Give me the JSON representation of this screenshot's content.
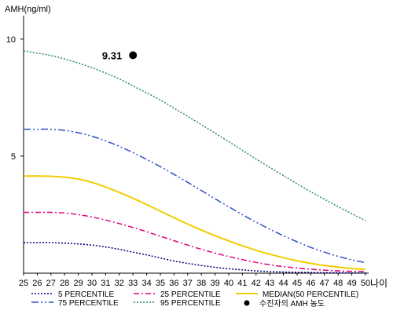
{
  "chart_data": {
    "type": "line",
    "ylabel": "AMH(ng/ml)",
    "xlabel": "나이",
    "xlim": [
      25,
      50
    ],
    "ylim": [
      0,
      11
    ],
    "x_ticks": [
      25,
      26,
      27,
      28,
      29,
      30,
      31,
      32,
      33,
      34,
      35,
      36,
      37,
      38,
      39,
      40,
      41,
      42,
      43,
      44,
      45,
      46,
      47,
      48,
      49,
      50
    ],
    "y_ticks": [
      5,
      10
    ],
    "x": [
      25,
      26,
      27,
      28,
      29,
      30,
      31,
      32,
      33,
      34,
      35,
      36,
      37,
      38,
      39,
      40,
      41,
      42,
      43,
      44,
      45,
      46,
      47,
      48,
      49,
      50
    ],
    "series": [
      {
        "name": "5 PERCENTILE",
        "color": "#000080",
        "dash": "2,2",
        "values": [
          1.3,
          1.3,
          1.3,
          1.28,
          1.25,
          1.2,
          1.12,
          1.02,
          0.9,
          0.78,
          0.65,
          0.52,
          0.42,
          0.33,
          0.25,
          0.19,
          0.14,
          0.1,
          0.07,
          0.05,
          0.04,
          0.03,
          0.02,
          0.02,
          0.01,
          0.01
        ]
      },
      {
        "name": "25 PERCENTILE",
        "color": "#e0007f",
        "dash": "7,3,2,3",
        "values": [
          2.6,
          2.6,
          2.6,
          2.57,
          2.5,
          2.4,
          2.27,
          2.12,
          1.95,
          1.77,
          1.58,
          1.39,
          1.2,
          1.02,
          0.86,
          0.71,
          0.58,
          0.46,
          0.36,
          0.28,
          0.22,
          0.17,
          0.13,
          0.1,
          0.08,
          0.07
        ]
      },
      {
        "name": "MEDIAN(50 PERCENTILE)",
        "color": "#f2cc00",
        "dash": "",
        "values": [
          4.15,
          4.15,
          4.14,
          4.1,
          4.02,
          3.88,
          3.68,
          3.45,
          3.2,
          2.93,
          2.65,
          2.37,
          2.1,
          1.84,
          1.6,
          1.38,
          1.17,
          0.98,
          0.81,
          0.66,
          0.53,
          0.42,
          0.33,
          0.26,
          0.2,
          0.16
        ]
      },
      {
        "name": "75 PERCENTILE",
        "color": "#2e4fc4",
        "dash": "9,3,2,3,2,3",
        "values": [
          6.15,
          6.15,
          6.15,
          6.1,
          6.0,
          5.85,
          5.65,
          5.42,
          5.15,
          4.86,
          4.55,
          4.22,
          3.88,
          3.53,
          3.18,
          2.84,
          2.5,
          2.18,
          1.88,
          1.6,
          1.34,
          1.1,
          0.9,
          0.72,
          0.57,
          0.45
        ]
      },
      {
        "name": "95 PERCENTILE",
        "color": "#2e8b57",
        "dash": "2,2",
        "values": [
          9.5,
          9.4,
          9.3,
          9.15,
          8.98,
          8.78,
          8.55,
          8.3,
          8.0,
          7.7,
          7.4,
          7.05,
          6.7,
          6.35,
          5.98,
          5.62,
          5.25,
          4.88,
          4.52,
          4.17,
          3.82,
          3.48,
          3.16,
          2.84,
          2.54,
          2.25
        ]
      }
    ],
    "annotation": {
      "label": "9.31",
      "x": 33,
      "y": 9.31
    },
    "marker_legend": "수진자의 AMH 농도",
    "grid": false,
    "legend_position": "bottom"
  }
}
